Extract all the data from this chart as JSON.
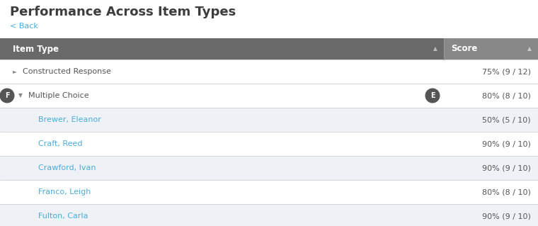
{
  "title": "Performance Across Item Types",
  "back_text": "< Back",
  "header": [
    "Item Type",
    "Score"
  ],
  "header_bg": "#696969",
  "header_score_bg": "#888888",
  "header_text_color": "#ffffff",
  "rows": [
    {
      "type": "item_type",
      "label": "Constructed Response",
      "score": "75% (9 / 12)",
      "bg": "#ffffff",
      "text_color": "#555555",
      "arrow": "►",
      "circle_left": null,
      "circle_right": null
    },
    {
      "type": "item_type",
      "label": "Multiple Choice",
      "score": "80% (8 / 10)",
      "bg": "#ffffff",
      "text_color": "#555555",
      "arrow": "▼",
      "circle_left": "F",
      "circle_right": "E"
    },
    {
      "type": "student",
      "label": "Brewer, Eleanor",
      "score": "50% (5 / 10)",
      "bg": "#eef2f7",
      "text_color": "#4aacda"
    },
    {
      "type": "student",
      "label": "Craft, Reed",
      "score": "90% (9 / 10)",
      "bg": "#ffffff",
      "text_color": "#4aacda"
    },
    {
      "type": "student",
      "label": "Crawford, Ivan",
      "score": "90% (9 / 10)",
      "bg": "#eef2f7",
      "text_color": "#4aacda"
    },
    {
      "type": "student",
      "label": "Franco, Leigh",
      "score": "80% (8 / 10)",
      "bg": "#ffffff",
      "text_color": "#4aacda"
    },
    {
      "type": "student",
      "label": "Fulton, Carla",
      "score": "90% (9 / 10)",
      "bg": "#eef2f7",
      "text_color": "#4aacda"
    }
  ],
  "divider_color": "#d0d0d0",
  "circle_bg": "#555555",
  "circle_text_color": "#ffffff",
  "title_color": "#3d3d3d",
  "back_color": "#4aacda",
  "page_bg": "#ffffff",
  "fig_width": 7.6,
  "fig_height": 3.19,
  "dpi": 100
}
